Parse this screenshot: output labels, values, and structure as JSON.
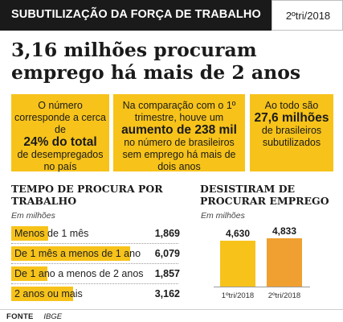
{
  "header": {
    "title": "SUBUTILIZAÇÃO DA FORÇA DE TRABALHO",
    "period": "2ºtri/2018"
  },
  "headline": {
    "line1": "3,16 milhões procuram",
    "line2": "emprego há mais de 2 anos"
  },
  "boxes": [
    {
      "pre": "O número corresponde a cerca de",
      "highlight": "24% do total",
      "post": "de desempregados no país"
    },
    {
      "pre": "Na comparação com o 1º trimestre, houve um",
      "highlight": "aumento de 238 mil",
      "post": "no número de brasileiros sem emprego há mais de dois anos"
    },
    {
      "pre": "Ao todo são",
      "highlight": "27,6 milhões",
      "post": "de brasileiros subutilizados"
    }
  ],
  "colors": {
    "accent": "#f7c31a",
    "dark": "#1a1a1a",
    "bar_1": "#f7c31a",
    "bar_2": "#f0a030"
  },
  "chart_data": [
    {
      "type": "bar",
      "orientation": "horizontal",
      "title": "TEMPO DE PROCURA POR TRABALHO",
      "unit": "Em milhões",
      "categories": [
        "Menos de 1 mês",
        "De 1 mês a menos de 1 ano",
        "De 1 ano a menos de 2 anos",
        "2 anos ou mais"
      ],
      "values": [
        1.869,
        6.079,
        1.857,
        3.162
      ],
      "value_labels": [
        "1,869",
        "6,079",
        "1,857",
        "3,162"
      ],
      "xlim": [
        0,
        6.079
      ],
      "grid": false,
      "legend": "none"
    },
    {
      "type": "bar",
      "title": "DESISTIRAM DE PROCURAR EMPREGO",
      "unit": "Em milhões",
      "categories": [
        "1ºtri/2018",
        "2ºtri/2018"
      ],
      "values": [
        4.63,
        4.833
      ],
      "value_labels": [
        "4,630",
        "4,833"
      ],
      "ylim": [
        0,
        4.833
      ],
      "grid": false,
      "legend": "none"
    }
  ],
  "footer": {
    "label": "FONTE",
    "source": "IBGE"
  }
}
